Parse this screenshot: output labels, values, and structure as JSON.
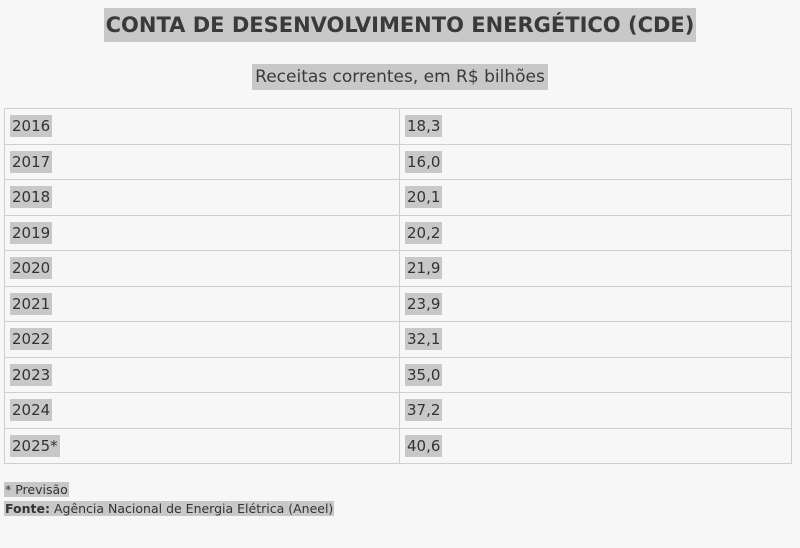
{
  "title": "CONTA DE DESENVOLVIMENTO ENERGÉTICO (CDE)",
  "subtitle": "Receitas correntes, em R$ bilhões",
  "chart_data": {
    "type": "table",
    "title": "CONTA DE DESENVOLVIMENTO ENERGÉTICO (CDE)",
    "subtitle": "Receitas correntes, em R$ bilhões",
    "rows": [
      {
        "year": "2016",
        "value": "18,3"
      },
      {
        "year": "2017",
        "value": "16,0"
      },
      {
        "year": "2018",
        "value": "20,1"
      },
      {
        "year": "2019",
        "value": "20,2"
      },
      {
        "year": "2020",
        "value": "21,9"
      },
      {
        "year": "2021",
        "value": "23,9"
      },
      {
        "year": "2022",
        "value": "32,1"
      },
      {
        "year": "2023",
        "value": "35,0"
      },
      {
        "year": "2024",
        "value": "37,2"
      },
      {
        "year": "2025*",
        "value": "40,6"
      }
    ]
  },
  "footnote": "* Previsão",
  "source": {
    "label": "Fonte:",
    "text": " Agência Nacional de Energia Elétrica (Aneel)"
  }
}
